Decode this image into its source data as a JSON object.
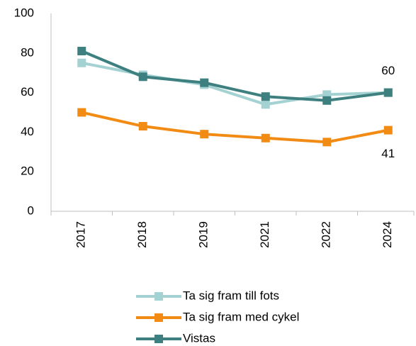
{
  "chart_data": {
    "type": "line",
    "categories": [
      "2017",
      "2018",
      "2019",
      "2021",
      "2022",
      "2024"
    ],
    "series": [
      {
        "name": "Ta sig fram till fots",
        "color": "#a4d2d2",
        "values": [
          75,
          69,
          64,
          54,
          59,
          60
        ]
      },
      {
        "name": "Ta sig fram med cykel",
        "color": "#f28b13",
        "values": [
          50,
          43,
          39,
          37,
          35,
          41
        ],
        "value_labels": [
          null,
          null,
          null,
          null,
          null,
          "41"
        ]
      },
      {
        "name": "Vistas",
        "color": "#3e8080",
        "values": [
          81,
          68,
          65,
          58,
          56,
          60
        ],
        "value_labels": [
          null,
          null,
          null,
          null,
          null,
          "60"
        ]
      }
    ],
    "ylim": [
      0,
      100
    ],
    "yticks": [
      0,
      20,
      40,
      60,
      80,
      100
    ],
    "grid": false,
    "legend": "bottom"
  }
}
